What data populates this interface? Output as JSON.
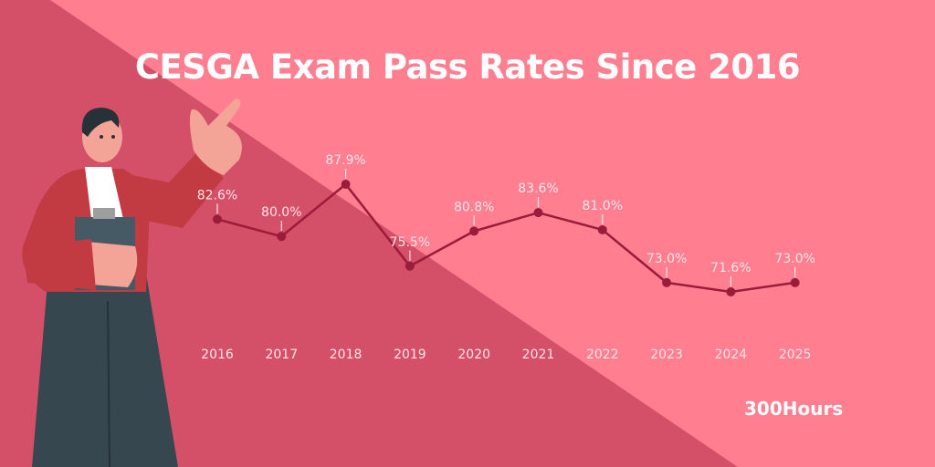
{
  "title": "CESGA Exam Pass Rates Since 2016",
  "logo": "300Hours",
  "colors": {
    "background_light": "#ff7f91",
    "background_dark": "#d45068",
    "line": "#9b1c3a",
    "text": "#ffe4e9"
  },
  "chart_data": {
    "type": "line",
    "title": "CESGA Exam Pass Rates Since 2016",
    "categories": [
      "2016",
      "2017",
      "2018",
      "2019",
      "2020",
      "2021",
      "2022",
      "2023",
      "2024",
      "2025"
    ],
    "values": [
      82.6,
      80.0,
      87.9,
      75.5,
      80.8,
      83.6,
      81.0,
      73.0,
      71.6,
      73.0
    ],
    "labels": [
      "82.6%",
      "80.0%",
      "87.9%",
      "75.5%",
      "80.8%",
      "83.6%",
      "81.0%",
      "73.0%",
      "71.6%",
      "73.0%"
    ],
    "xlabel": "",
    "ylabel": "",
    "grid": false,
    "legend": "none"
  }
}
